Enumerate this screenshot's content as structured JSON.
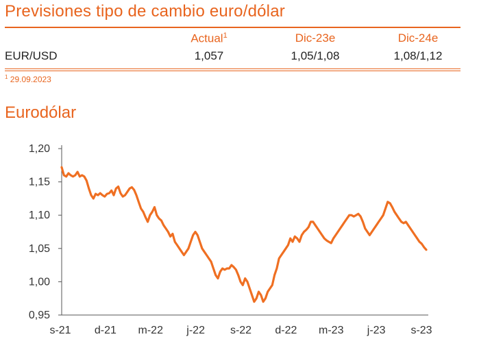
{
  "header": {
    "title": "Previsiones tipo de cambio euro/dólar"
  },
  "forecast_table": {
    "columns": [
      "Actual",
      "Dic-23e",
      "Dic-24e"
    ],
    "actual_superscript": "1",
    "rows": [
      {
        "label": "EUR/USD",
        "values": [
          "1,057",
          "1,05/1,08",
          "1,08/1,12"
        ]
      }
    ],
    "footnote_mark": "1",
    "footnote": "29.09.2023"
  },
  "chart_section": {
    "title": "Eurodólar"
  },
  "colors": {
    "accent": "#e8641e",
    "line": "#ef6f22",
    "text": "#222222"
  },
  "chart_data": {
    "type": "line",
    "title": "Eurodólar",
    "xlabel": "",
    "ylabel": "",
    "ylim": [
      0.95,
      1.2
    ],
    "yticks": [
      "1,20",
      "1,15",
      "1,10",
      "1,05",
      "1,00",
      "0,95"
    ],
    "xticks": [
      "s-21",
      "d-21",
      "m-22",
      "j-22",
      "s-22",
      "d-22",
      "m-23",
      "j-23",
      "s-23"
    ],
    "grid": false,
    "series": [
      {
        "values": [
          1.172,
          1.16,
          1.158,
          1.163,
          1.16,
          1.158,
          1.16,
          1.165,
          1.158,
          1.16,
          1.158,
          1.152,
          1.14,
          1.13,
          1.125,
          1.132,
          1.13,
          1.133,
          1.13,
          1.128,
          1.132,
          1.133,
          1.137,
          1.13,
          1.14,
          1.143,
          1.133,
          1.128,
          1.13,
          1.135,
          1.14,
          1.142,
          1.138,
          1.13,
          1.12,
          1.11,
          1.105,
          1.097,
          1.09,
          1.1,
          1.105,
          1.112,
          1.1,
          1.095,
          1.092,
          1.085,
          1.08,
          1.075,
          1.068,
          1.072,
          1.06,
          1.055,
          1.05,
          1.045,
          1.04,
          1.045,
          1.05,
          1.06,
          1.07,
          1.075,
          1.07,
          1.06,
          1.05,
          1.045,
          1.04,
          1.035,
          1.03,
          1.02,
          1.01,
          1.005,
          1.015,
          1.02,
          1.018,
          1.02,
          1.02,
          1.025,
          1.022,
          1.018,
          1.01,
          1.0,
          0.995,
          1.005,
          1.0,
          0.99,
          0.98,
          0.97,
          0.975,
          0.985,
          0.98,
          0.97,
          0.975,
          0.985,
          0.99,
          0.995,
          1.01,
          1.02,
          1.035,
          1.04,
          1.045,
          1.05,
          1.055,
          1.065,
          1.06,
          1.068,
          1.065,
          1.06,
          1.07,
          1.075,
          1.078,
          1.082,
          1.09,
          1.09,
          1.085,
          1.08,
          1.075,
          1.07,
          1.065,
          1.062,
          1.06,
          1.058,
          1.065,
          1.07,
          1.075,
          1.08,
          1.085,
          1.09,
          1.095,
          1.1,
          1.1,
          1.098,
          1.1,
          1.102,
          1.098,
          1.09,
          1.08,
          1.075,
          1.07,
          1.075,
          1.08,
          1.085,
          1.09,
          1.095,
          1.1,
          1.11,
          1.12,
          1.118,
          1.112,
          1.105,
          1.1,
          1.095,
          1.09,
          1.088,
          1.09,
          1.085,
          1.08,
          1.075,
          1.07,
          1.065,
          1.06,
          1.057,
          1.052,
          1.048
        ]
      }
    ]
  }
}
